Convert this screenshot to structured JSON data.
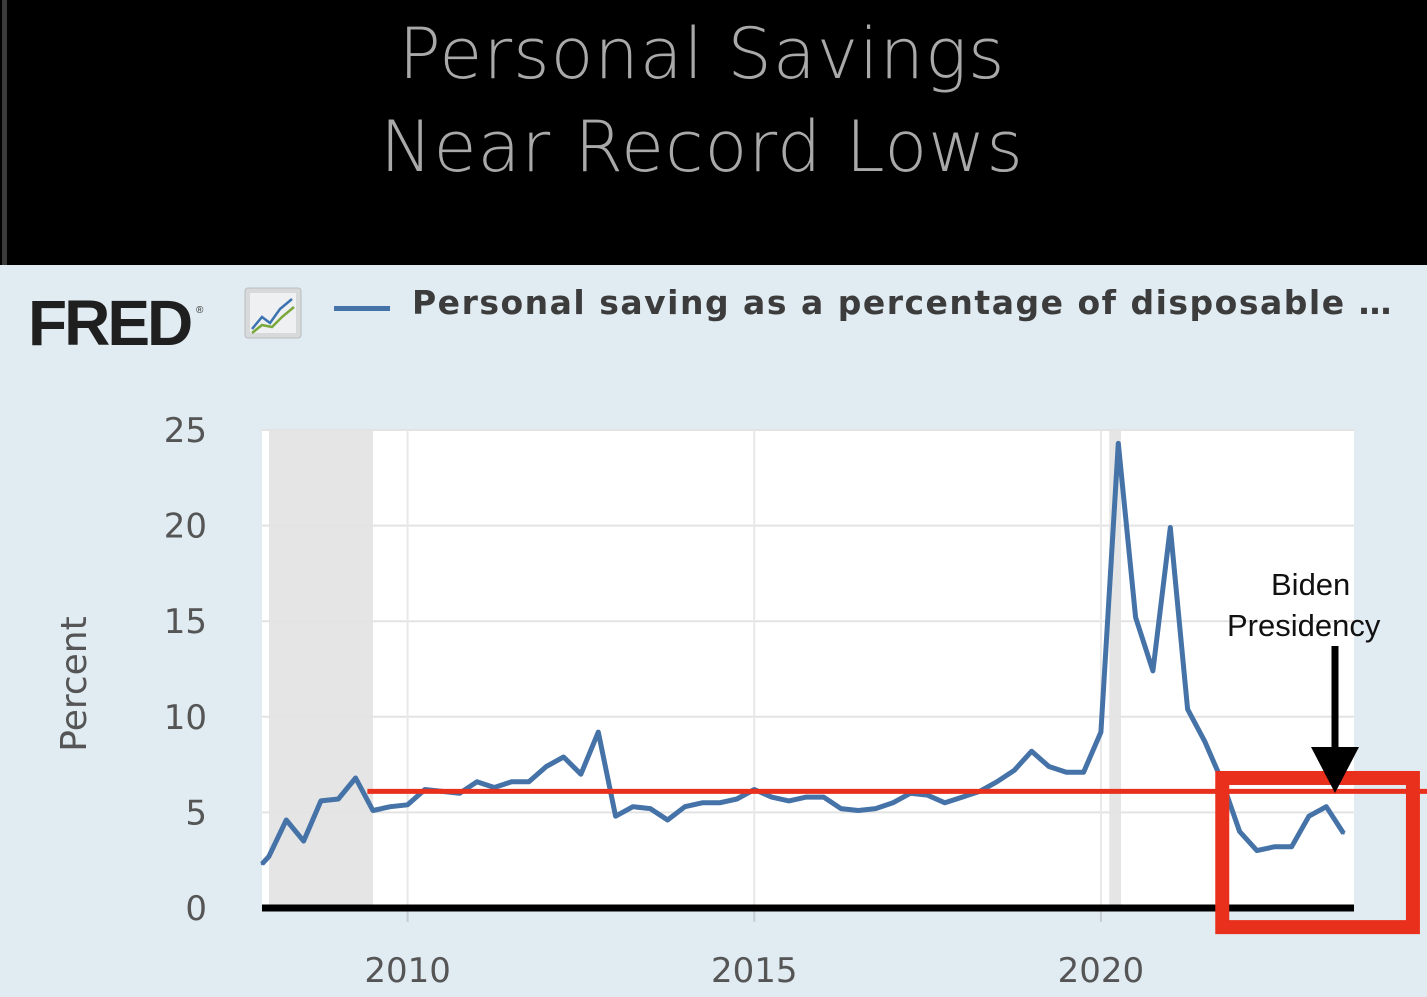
{
  "headline": {
    "line1": "Personal Savings",
    "line2": "Near Record Lows"
  },
  "source": {
    "logo_text": "FRED",
    "logo_mark": "®",
    "icon": "line-chart-icon"
  },
  "colors": {
    "panel_background": "#e1ebf2",
    "plot_background": "#ffffff",
    "series_line": "#4572a7",
    "recession_shade": "#e5e5e5",
    "average_line": "#e8301c",
    "highlight_box": "#e8301c",
    "baseline": "#000000"
  },
  "annotation": {
    "line1": "Biden",
    "line2": "Presidency"
  },
  "chart_data": {
    "type": "line",
    "title": "",
    "xlabel": "",
    "ylabel": "Percent",
    "xlim": [
      2007.9,
      2023.65
    ],
    "ylim": [
      0,
      25
    ],
    "x_ticks": [
      2010,
      2015,
      2020
    ],
    "x_tick_labels": [
      "2010",
      "2015",
      "2020"
    ],
    "y_ticks": [
      0,
      5,
      10,
      15,
      20,
      25
    ],
    "y_tick_labels": [
      "0",
      "5",
      "10",
      "15",
      "20",
      "25"
    ],
    "grid": true,
    "legend_position": "top",
    "recession_periods": [
      [
        2008.0,
        2009.5
      ],
      [
        2020.12,
        2020.29
      ]
    ],
    "reference_line": {
      "y": 6.1,
      "x_start": 2009.42
    },
    "highlight_region": {
      "x_start": 2021.75,
      "x_end": 2024.5,
      "y_start": -1.0,
      "y_end": 6.8
    },
    "series": [
      {
        "name": "Personal saving as a percentage of disposable …",
        "points": [
          [
            2007.9,
            2.3
          ],
          [
            2008.0,
            2.7
          ],
          [
            2008.25,
            4.6
          ],
          [
            2008.5,
            3.5
          ],
          [
            2008.75,
            5.6
          ],
          [
            2009.0,
            5.7
          ],
          [
            2009.25,
            6.8
          ],
          [
            2009.5,
            5.1
          ],
          [
            2009.75,
            5.3
          ],
          [
            2010.0,
            5.4
          ],
          [
            2010.25,
            6.2
          ],
          [
            2010.5,
            6.1
          ],
          [
            2010.75,
            6.0
          ],
          [
            2011.0,
            6.6
          ],
          [
            2011.25,
            6.3
          ],
          [
            2011.5,
            6.6
          ],
          [
            2011.75,
            6.6
          ],
          [
            2012.0,
            7.4
          ],
          [
            2012.25,
            7.9
          ],
          [
            2012.5,
            7.0
          ],
          [
            2012.75,
            9.2
          ],
          [
            2013.0,
            4.8
          ],
          [
            2013.25,
            5.3
          ],
          [
            2013.5,
            5.2
          ],
          [
            2013.75,
            4.6
          ],
          [
            2014.0,
            5.3
          ],
          [
            2014.25,
            5.5
          ],
          [
            2014.5,
            5.5
          ],
          [
            2014.75,
            5.7
          ],
          [
            2015.0,
            6.2
          ],
          [
            2015.25,
            5.8
          ],
          [
            2015.5,
            5.6
          ],
          [
            2015.75,
            5.8
          ],
          [
            2016.0,
            5.8
          ],
          [
            2016.25,
            5.2
          ],
          [
            2016.5,
            5.1
          ],
          [
            2016.75,
            5.2
          ],
          [
            2017.0,
            5.5
          ],
          [
            2017.25,
            6.0
          ],
          [
            2017.5,
            5.9
          ],
          [
            2017.75,
            5.5
          ],
          [
            2018.0,
            5.8
          ],
          [
            2018.25,
            6.1
          ],
          [
            2018.5,
            6.6
          ],
          [
            2018.75,
            7.2
          ],
          [
            2019.0,
            8.2
          ],
          [
            2019.25,
            7.4
          ],
          [
            2019.5,
            7.1
          ],
          [
            2019.75,
            7.1
          ],
          [
            2020.0,
            9.2
          ],
          [
            2020.25,
            24.3
          ],
          [
            2020.5,
            15.2
          ],
          [
            2020.75,
            12.4
          ],
          [
            2021.0,
            19.9
          ],
          [
            2021.25,
            10.4
          ],
          [
            2021.5,
            8.7
          ],
          [
            2021.75,
            6.6
          ],
          [
            2022.0,
            4.0
          ],
          [
            2022.25,
            3.0
          ],
          [
            2022.5,
            3.2
          ],
          [
            2022.75,
            3.2
          ],
          [
            2023.0,
            4.8
          ],
          [
            2023.25,
            5.3
          ],
          [
            2023.5,
            3.9
          ]
        ]
      }
    ]
  }
}
